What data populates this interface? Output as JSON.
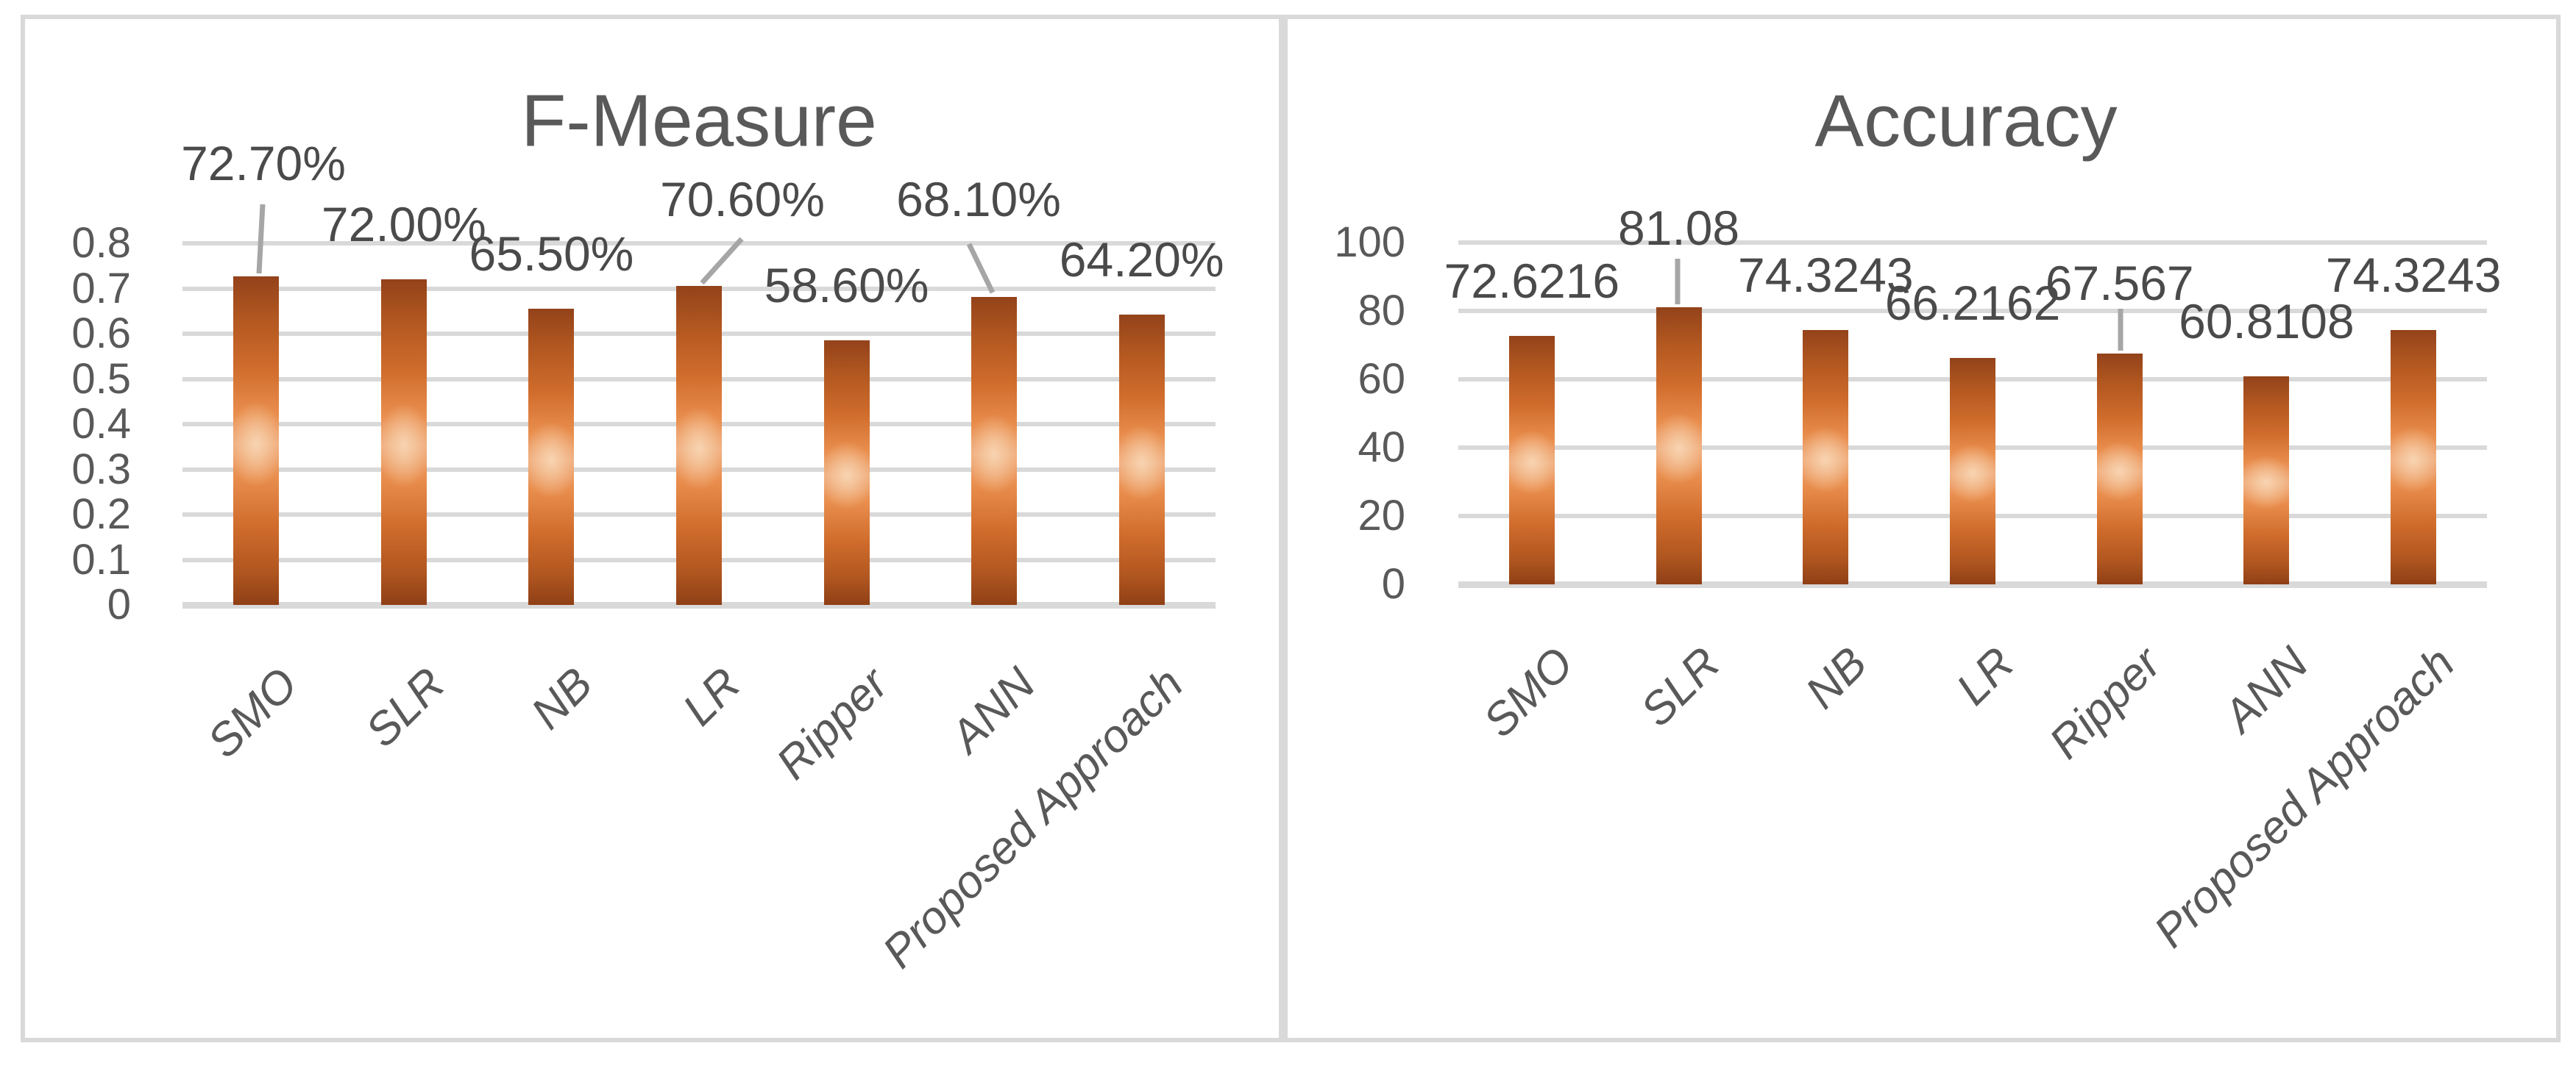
{
  "figure": {
    "background": "#ffffff",
    "panel_border_color": "#d9d9d9"
  },
  "colors": {
    "text": "#595959",
    "data_label_text": "#4a4a4a",
    "gridline": "#d9d9d9",
    "leader_line": "#a6a6a6",
    "bar_edge": "#93421a",
    "bar_mid": "#e8823f",
    "bar_highlight": "#f3c9a4"
  },
  "chart_data": [
    {
      "type": "bar",
      "title": "F-Measure",
      "categories": [
        "SMO",
        "SLR",
        "NB",
        "LR",
        "Ripper",
        "ANN",
        "Proposed Approach"
      ],
      "values": [
        0.727,
        0.72,
        0.655,
        0.706,
        0.586,
        0.681,
        0.642
      ],
      "data_labels": [
        "72.70%",
        "72.00%",
        "65.50%",
        "70.60%",
        "58.60%",
        "68.10%",
        "64.20%"
      ],
      "xlabel": "",
      "ylabel": "",
      "ylim": [
        0,
        0.8
      ],
      "ytick_values": [
        0.8,
        0.7,
        0.6,
        0.5,
        0.4,
        0.3,
        0.2,
        0.1,
        0
      ],
      "ytick_labels": [
        "0.8",
        "0.7",
        "0.6",
        "0.5",
        "0.4",
        "0.3",
        "0.2",
        "0.1",
        "0"
      ],
      "grid": "horizontal",
      "legend": "none",
      "bar_color": "orange-gradient"
    },
    {
      "type": "bar",
      "title": "Accuracy",
      "categories": [
        "SMO",
        "SLR",
        "NB",
        "LR",
        "Ripper",
        "ANN",
        "Proposed Approach"
      ],
      "values": [
        72.6216,
        81.08,
        74.3243,
        66.2162,
        67.567,
        60.8108,
        74.3243
      ],
      "data_labels": [
        "72.6216",
        "81.08",
        "74.3243",
        "66.2162",
        "67.567",
        "60.8108",
        "74.3243"
      ],
      "xlabel": "",
      "ylabel": "",
      "ylim": [
        0,
        100
      ],
      "ytick_values": [
        100,
        80,
        60,
        40,
        20,
        0
      ],
      "ytick_labels": [
        "100",
        "80",
        "60",
        "40",
        "20",
        "0"
      ],
      "grid": "horizontal",
      "legend": "none",
      "bar_color": "orange-gradient"
    }
  ]
}
